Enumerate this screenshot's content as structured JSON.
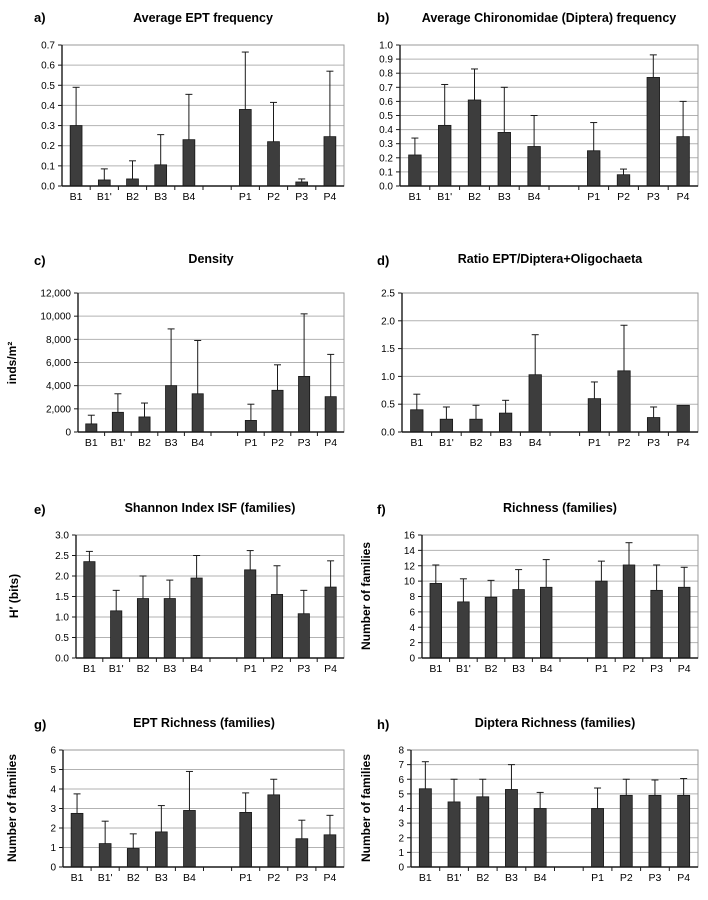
{
  "figure": {
    "background_color": "#ffffff",
    "bar_color": "#3d3d3d",
    "grid_color": "#b2b2b2",
    "axis_color": "#1a1a1a",
    "box_color": "#999999"
  },
  "chart_data": [
    {
      "id": "a",
      "label": "a)",
      "type": "bar",
      "title": "Average EPT frequency",
      "ylabel": "",
      "categories": [
        "B1",
        "B1'",
        "B2",
        "B3",
        "B4",
        "P1",
        "P2",
        "P3",
        "P4"
      ],
      "values": [
        0.3,
        0.03,
        0.035,
        0.105,
        0.23,
        0.38,
        0.22,
        0.02,
        0.245
      ],
      "errors_upper": [
        0.19,
        0.055,
        0.09,
        0.15,
        0.225,
        0.285,
        0.195,
        0.015,
        0.325
      ],
      "ylim": [
        0,
        0.7
      ],
      "ytick_labels": [
        "0.0",
        "0.1",
        "0.2",
        "0.3",
        "0.4",
        "0.5",
        "0.6",
        "0.7"
      ],
      "grid": true,
      "legend": "none"
    },
    {
      "id": "b",
      "label": "b)",
      "type": "bar",
      "title": "Average Chironomidae (Diptera) frequency",
      "ylabel": "",
      "categories": [
        "B1",
        "B1'",
        "B2",
        "B3",
        "B4",
        "P1",
        "P2",
        "P3",
        "P4"
      ],
      "values": [
        0.22,
        0.43,
        0.61,
        0.38,
        0.28,
        0.25,
        0.08,
        0.77,
        0.35
      ],
      "errors_upper": [
        0.12,
        0.29,
        0.22,
        0.32,
        0.22,
        0.2,
        0.04,
        0.16,
        0.25
      ],
      "ylim": [
        0,
        1.0
      ],
      "ytick_labels": [
        "0.0",
        "0.1",
        "0.2",
        "0.3",
        "0.4",
        "0.5",
        "0.6",
        "0.7",
        "0.8",
        "0.9",
        "1.0"
      ],
      "grid": true,
      "legend": "none"
    },
    {
      "id": "c",
      "label": "c)",
      "type": "bar",
      "title": "Density",
      "ylabel": "inds/m²",
      "categories": [
        "B1",
        "B1'",
        "B2",
        "B3",
        "B4",
        "P1",
        "P2",
        "P3",
        "P4"
      ],
      "values": [
        700,
        1700,
        1300,
        4000,
        3300,
        1000,
        3600,
        4800,
        3050
      ],
      "errors_upper": [
        750,
        1600,
        1200,
        4900,
        4600,
        1400,
        2200,
        5400,
        3650
      ],
      "ylim": [
        0,
        12000
      ],
      "ytick_labels": [
        "0",
        "2,000",
        "4,000",
        "6,000",
        "8,000",
        "10,000",
        "12,000"
      ],
      "grid": true,
      "legend": "none"
    },
    {
      "id": "d",
      "label": "d)",
      "type": "bar",
      "title": "Ratio EPT/Diptera+Oligochaeta",
      "ylabel": "",
      "categories": [
        "B1",
        "B1'",
        "B2",
        "B3",
        "B4",
        "P1",
        "P2",
        "P3",
        "P4"
      ],
      "values": [
        0.4,
        0.23,
        0.23,
        0.34,
        1.03,
        0.6,
        1.1,
        0.26,
        0.48
      ],
      "errors_upper": [
        0.28,
        0.22,
        0.25,
        0.23,
        0.72,
        0.3,
        0.82,
        0.19,
        0
      ],
      "ylim": [
        0,
        2.5
      ],
      "ytick_labels": [
        "0.0",
        "0.5",
        "1.0",
        "1.5",
        "2.0",
        "2.5"
      ],
      "grid": true,
      "legend": "none"
    },
    {
      "id": "e",
      "label": "e)",
      "type": "bar",
      "title": "Shannon Index ISF (families)",
      "ylabel": "H′ (bits)",
      "categories": [
        "B1",
        "B1'",
        "B2",
        "B3",
        "B4",
        "P1",
        "P2",
        "P3",
        "P4"
      ],
      "values": [
        2.35,
        1.15,
        1.45,
        1.45,
        1.95,
        2.15,
        1.55,
        1.08,
        1.73
      ],
      "errors_upper": [
        0.25,
        0.5,
        0.55,
        0.45,
        0.55,
        0.47,
        0.7,
        0.57,
        0.64
      ],
      "ylim": [
        0,
        3.0
      ],
      "ytick_labels": [
        "0.0",
        "0.5",
        "1.0",
        "1.5",
        "2.0",
        "2.5",
        "3.0"
      ],
      "grid": true,
      "legend": "none"
    },
    {
      "id": "f",
      "label": "f)",
      "type": "bar",
      "title": "Richness (families)",
      "ylabel": "Number of families",
      "categories": [
        "B1",
        "B1'",
        "B2",
        "B3",
        "B4",
        "P1",
        "P2",
        "P3",
        "P4"
      ],
      "values": [
        9.7,
        7.3,
        7.9,
        8.9,
        9.2,
        10.0,
        12.1,
        8.8,
        9.2
      ],
      "errors_upper": [
        2.4,
        3.0,
        2.2,
        2.6,
        3.6,
        2.6,
        2.9,
        3.3,
        2.6
      ],
      "ylim": [
        0,
        16
      ],
      "ytick_labels": [
        "0",
        "2",
        "4",
        "6",
        "8",
        "10",
        "12",
        "14",
        "16"
      ],
      "grid": true,
      "legend": "none"
    },
    {
      "id": "g",
      "label": "g)",
      "type": "bar",
      "title": "EPT Richness (families)",
      "ylabel": "Number of families",
      "categories": [
        "B1",
        "B1'",
        "B2",
        "B3",
        "B4",
        "P1",
        "P2",
        "P3",
        "P4"
      ],
      "values": [
        2.75,
        1.2,
        0.95,
        1.8,
        2.9,
        2.8,
        3.7,
        1.45,
        1.65
      ],
      "errors_upper": [
        1.0,
        1.15,
        0.75,
        1.35,
        2.0,
        1.0,
        0.8,
        0.95,
        1.0
      ],
      "ylim": [
        0,
        6
      ],
      "ytick_labels": [
        "0",
        "1",
        "2",
        "3",
        "4",
        "5",
        "6"
      ],
      "grid": true,
      "legend": "none"
    },
    {
      "id": "h",
      "label": "h)",
      "type": "bar",
      "title": "Diptera Richness (families)",
      "ylabel": "Number of families",
      "categories": [
        "B1",
        "B1'",
        "B2",
        "B3",
        "B4",
        "P1",
        "P2",
        "P3",
        "P4"
      ],
      "values": [
        5.35,
        4.45,
        4.8,
        5.3,
        4.0,
        4.0,
        4.9,
        4.9,
        4.9
      ],
      "errors_upper": [
        1.85,
        1.55,
        1.2,
        1.7,
        1.1,
        1.4,
        1.1,
        1.05,
        1.15
      ],
      "ylim": [
        0,
        8
      ],
      "ytick_labels": [
        "0",
        "1",
        "2",
        "3",
        "4",
        "5",
        "6",
        "7",
        "8"
      ],
      "grid": true,
      "legend": "none"
    }
  ]
}
